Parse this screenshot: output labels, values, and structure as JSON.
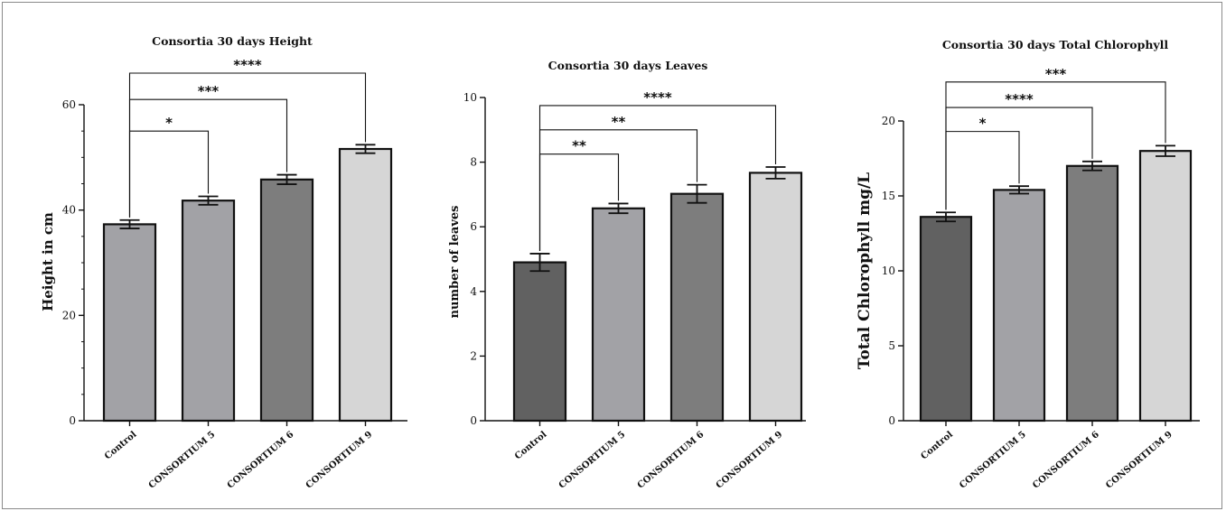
{
  "chart_data": [
    {
      "type": "bar",
      "title": "Consortia 30 days Height",
      "ylabel": "Height in cm",
      "categories": [
        "Control",
        "CONSORTIUM 5",
        "CONSORTIUM 6",
        "CONSORTIUM 9"
      ],
      "values": [
        37.3,
        41.8,
        45.8,
        51.6
      ],
      "errors": [
        0.8,
        0.8,
        0.9,
        0.8
      ],
      "colors": [
        "#a2a2a6",
        "#a2a2a6",
        "#7d7d7d",
        "#d6d6d6"
      ],
      "ylim": [
        0,
        60
      ],
      "yticks": [
        "0",
        "20",
        "40",
        "60"
      ],
      "minor_ticks": 12,
      "significance": [
        {
          "from": "Control",
          "to": "CONSORTIUM 5",
          "label": "*",
          "level": 55
        },
        {
          "from": "Control",
          "to": "CONSORTIUM 6",
          "label": "***",
          "level": 61
        },
        {
          "from": "Control",
          "to": "CONSORTIUM 9",
          "label": "****",
          "level": 66
        }
      ]
    },
    {
      "type": "bar",
      "title": "Consortia 30 days Leaves",
      "ylabel": "number of leaves",
      "categories": [
        "Control",
        "CONSORTIUM 5",
        "CONSORTIUM 6",
        "CONSORTIUM 9"
      ],
      "values": [
        4.9,
        6.57,
        7.02,
        7.67
      ],
      "errors": [
        0.27,
        0.15,
        0.28,
        0.18
      ],
      "colors": [
        "#616161",
        "#a2a2a6",
        "#7d7d7d",
        "#d6d6d6"
      ],
      "ylim": [
        0,
        10
      ],
      "yticks": [
        "0",
        "2",
        "4",
        "6",
        "8",
        "10"
      ],
      "minor_ticks": 0,
      "significance": [
        {
          "from": "Control",
          "to": "CONSORTIUM 5",
          "label": "**",
          "level": 8.25
        },
        {
          "from": "Control",
          "to": "CONSORTIUM 6",
          "label": "**",
          "level": 9.0
        },
        {
          "from": "Control",
          "to": "CONSORTIUM 9",
          "label": "****",
          "level": 9.75
        }
      ]
    },
    {
      "type": "bar",
      "title": "Consortia 30 days Total Chlorophyll",
      "ylabel": "Total Chlorophyll mg/L",
      "categories": [
        "Control",
        "CONSORTIUM 5",
        "CONSORTIUM 6",
        "CONSORTIUM 9"
      ],
      "values": [
        13.6,
        15.4,
        17.0,
        18.0
      ],
      "errors": [
        0.3,
        0.25,
        0.3,
        0.35
      ],
      "colors": [
        "#616161",
        "#a2a2a6",
        "#7d7d7d",
        "#d6d6d6"
      ],
      "ylim": [
        0,
        20
      ],
      "yticks": [
        "0",
        "5",
        "10",
        "15",
        "20"
      ],
      "minor_ticks": 0,
      "significance": [
        {
          "from": "Control",
          "to": "CONSORTIUM 5",
          "label": "*",
          "level": 19.3
        },
        {
          "from": "Control",
          "to": "CONSORTIUM 6",
          "label": "****",
          "level": 20.9
        },
        {
          "from": "Control",
          "to": "CONSORTIUM 9",
          "label": "***",
          "level": 22.6
        }
      ]
    }
  ]
}
